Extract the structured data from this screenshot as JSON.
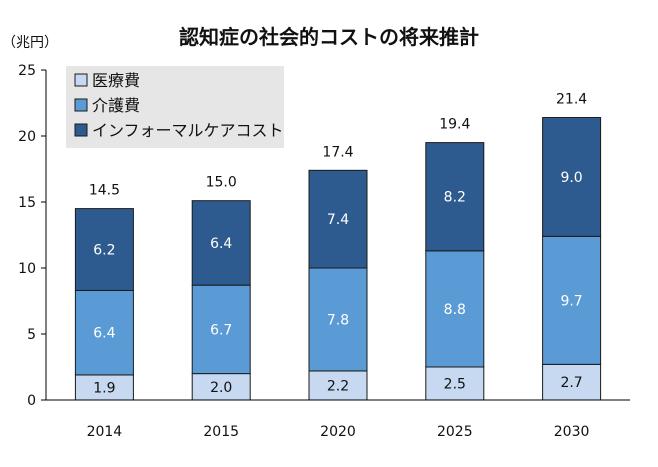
{
  "chart_data": {
    "type": "bar",
    "stacked": true,
    "title": "認知症の社会的コストの将来推計",
    "unit_label": "（兆円）",
    "xlabel": "",
    "ylabel": "",
    "ylim": [
      0,
      25
    ],
    "yticks": [
      0,
      5,
      10,
      15,
      20,
      25
    ],
    "grid": false,
    "legend_position": "top-left",
    "categories": [
      "2014",
      "2015",
      "2020",
      "2025",
      "2030"
    ],
    "series": [
      {
        "name": "医療費",
        "color": "#c6d9f1",
        "label_style": "light",
        "values": [
          1.9,
          2.0,
          2.2,
          2.5,
          2.7
        ],
        "labels": [
          "1.9",
          "2.0",
          "2.2",
          "2.5",
          "2.7"
        ]
      },
      {
        "name": "介護費",
        "color": "#5b9bd5",
        "label_style": "dark",
        "values": [
          6.4,
          6.7,
          7.8,
          8.8,
          9.7
        ],
        "labels": [
          "6.4",
          "6.7",
          "7.8",
          "8.8",
          "9.7"
        ]
      },
      {
        "name": "インフォーマルケアコスト",
        "color": "#2e5b8f",
        "label_style": "dark",
        "values": [
          6.2,
          6.4,
          7.4,
          8.2,
          9.0
        ],
        "labels": [
          "6.2",
          "6.4",
          "7.4",
          "8.2",
          "9.0"
        ]
      }
    ],
    "totals": [
      14.5,
      15.0,
      17.4,
      19.4,
      21.4
    ],
    "total_labels": [
      "14.5",
      "15.0",
      "17.4",
      "19.4",
      "21.4"
    ]
  },
  "colors": {
    "bar_border": "#1a1a1a",
    "legend_bg": "#e6e6e6",
    "axis": "#000000"
  }
}
